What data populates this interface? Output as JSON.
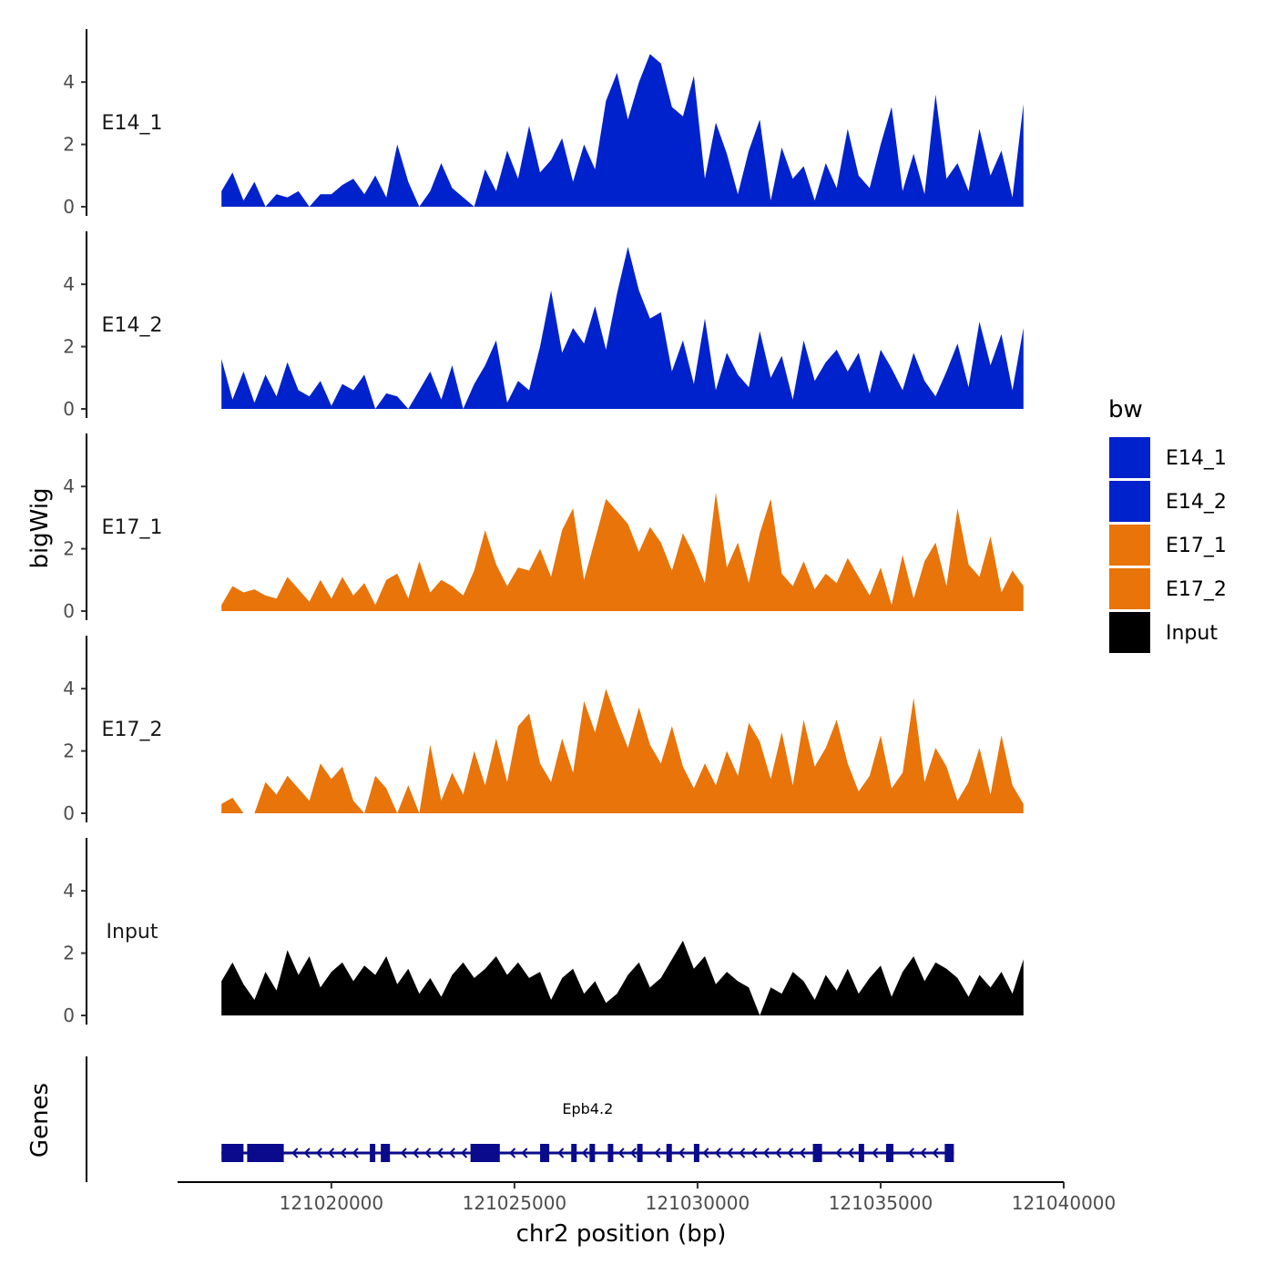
{
  "chart_data": {
    "type": "area",
    "title": "",
    "xlabel": "chr2 position (bp)",
    "ylabel": "bigWig",
    "genes_label": "Genes",
    "xlim": [
      121015800,
      121040000
    ],
    "xticks": [
      121020000,
      121025000,
      121030000,
      121035000,
      121040000
    ],
    "xtick_labels": [
      "121020000",
      "121025000",
      "121030000",
      "121035000",
      "121040000"
    ],
    "ylim": [
      0,
      5.7
    ],
    "yticks": [
      0,
      2,
      4
    ],
    "ytick_labels": [
      "0",
      "2",
      "4"
    ],
    "legend": {
      "title": "bw",
      "position": "right",
      "entries": [
        {
          "label": "E14_1",
          "color": "#0022CC"
        },
        {
          "label": "E14_2",
          "color": "#0022CC"
        },
        {
          "label": "E17_1",
          "color": "#E8740A"
        },
        {
          "label": "E17_2",
          "color": "#E8740A"
        },
        {
          "label": "Input",
          "color": "#000000"
        }
      ]
    },
    "series": [
      {
        "name": "E14_1",
        "color": "#0022CC",
        "x": [
          121017000,
          121017300,
          121017600,
          121017900,
          121018200,
          121018500,
          121018800,
          121019100,
          121019400,
          121019700,
          121020000,
          121020300,
          121020600,
          121020900,
          121021200,
          121021500,
          121021800,
          121022100,
          121022400,
          121022700,
          121023000,
          121023300,
          121023600,
          121023900,
          121024200,
          121024500,
          121024800,
          121025100,
          121025400,
          121025700,
          121026000,
          121026300,
          121026600,
          121026900,
          121027200,
          121027500,
          121027800,
          121028100,
          121028400,
          121028700,
          121029000,
          121029300,
          121029600,
          121029900,
          121030200,
          121030500,
          121030800,
          121031100,
          121031400,
          121031700,
          121032000,
          121032300,
          121032600,
          121032900,
          121033200,
          121033500,
          121033800,
          121034100,
          121034400,
          121034700,
          121035000,
          121035300,
          121035600,
          121035900,
          121036200,
          121036500,
          121036800,
          121037100,
          121037400,
          121037700,
          121038000,
          121038300,
          121038600,
          121038900
        ],
        "values": [
          0.5,
          1.1,
          0.2,
          0.8,
          0.0,
          0.4,
          0.3,
          0.5,
          0.0,
          0.4,
          0.4,
          0.7,
          0.9,
          0.4,
          1.0,
          0.3,
          2.0,
          0.8,
          0.0,
          0.5,
          1.4,
          0.6,
          0.3,
          0.0,
          1.2,
          0.5,
          1.8,
          0.9,
          2.6,
          1.1,
          1.5,
          2.2,
          0.8,
          2.0,
          1.2,
          3.4,
          4.3,
          2.8,
          4.0,
          4.9,
          4.6,
          3.2,
          2.9,
          4.2,
          0.9,
          2.7,
          1.7,
          0.4,
          1.8,
          2.8,
          0.2,
          1.9,
          0.9,
          1.3,
          0.2,
          1.4,
          0.6,
          2.5,
          1.0,
          0.6,
          2.0,
          3.2,
          0.5,
          1.7,
          0.4,
          3.6,
          0.9,
          1.4,
          0.5,
          2.5,
          1.0,
          1.8,
          0.3,
          3.3
        ]
      },
      {
        "name": "E14_2",
        "color": "#0022CC",
        "x": [
          121017000,
          121017300,
          121017600,
          121017900,
          121018200,
          121018500,
          121018800,
          121019100,
          121019400,
          121019700,
          121020000,
          121020300,
          121020600,
          121020900,
          121021200,
          121021500,
          121021800,
          121022100,
          121022400,
          121022700,
          121023000,
          121023300,
          121023600,
          121023900,
          121024200,
          121024500,
          121024800,
          121025100,
          121025400,
          121025700,
          121026000,
          121026300,
          121026600,
          121026900,
          121027200,
          121027500,
          121027800,
          121028100,
          121028400,
          121028700,
          121029000,
          121029300,
          121029600,
          121029900,
          121030200,
          121030500,
          121030800,
          121031100,
          121031400,
          121031700,
          121032000,
          121032300,
          121032600,
          121032900,
          121033200,
          121033500,
          121033800,
          121034100,
          121034400,
          121034700,
          121035000,
          121035300,
          121035600,
          121035900,
          121036200,
          121036500,
          121036800,
          121037100,
          121037400,
          121037700,
          121038000,
          121038300,
          121038600,
          121038900
        ],
        "values": [
          1.6,
          0.3,
          1.2,
          0.2,
          1.1,
          0.4,
          1.5,
          0.6,
          0.4,
          0.9,
          0.1,
          0.8,
          0.6,
          1.1,
          0.0,
          0.5,
          0.4,
          0.0,
          0.6,
          1.2,
          0.3,
          1.4,
          0.0,
          0.8,
          1.4,
          2.2,
          0.2,
          0.9,
          0.6,
          2.0,
          3.8,
          1.8,
          2.6,
          2.1,
          3.3,
          1.9,
          3.7,
          5.2,
          3.8,
          2.9,
          3.1,
          1.2,
          2.2,
          0.8,
          2.9,
          0.6,
          1.8,
          1.1,
          0.7,
          2.5,
          1.0,
          1.7,
          0.3,
          2.2,
          0.9,
          1.5,
          1.9,
          1.2,
          1.8,
          0.5,
          1.9,
          1.3,
          0.6,
          1.8,
          0.9,
          0.4,
          1.2,
          2.1,
          0.7,
          2.8,
          1.4,
          2.4,
          0.6,
          2.6
        ]
      },
      {
        "name": "E17_1",
        "color": "#E8740A",
        "x": [
          121017000,
          121017300,
          121017600,
          121017900,
          121018200,
          121018500,
          121018800,
          121019100,
          121019400,
          121019700,
          121020000,
          121020300,
          121020600,
          121020900,
          121021200,
          121021500,
          121021800,
          121022100,
          121022400,
          121022700,
          121023000,
          121023300,
          121023600,
          121023900,
          121024200,
          121024500,
          121024800,
          121025100,
          121025400,
          121025700,
          121026000,
          121026300,
          121026600,
          121026900,
          121027200,
          121027500,
          121027800,
          121028100,
          121028400,
          121028700,
          121029000,
          121029300,
          121029600,
          121029900,
          121030200,
          121030500,
          121030800,
          121031100,
          121031400,
          121031700,
          121032000,
          121032300,
          121032600,
          121032900,
          121033200,
          121033500,
          121033800,
          121034100,
          121034400,
          121034700,
          121035000,
          121035300,
          121035600,
          121035900,
          121036200,
          121036500,
          121036800,
          121037100,
          121037400,
          121037700,
          121038000,
          121038300,
          121038600,
          121038900
        ],
        "values": [
          0.2,
          0.8,
          0.6,
          0.7,
          0.5,
          0.4,
          1.1,
          0.7,
          0.3,
          1.0,
          0.4,
          1.1,
          0.5,
          0.9,
          0.2,
          1.0,
          1.2,
          0.4,
          1.6,
          0.6,
          1.0,
          0.8,
          0.5,
          1.3,
          2.6,
          1.5,
          0.8,
          1.4,
          1.3,
          2.0,
          1.1,
          2.6,
          3.3,
          1.0,
          2.3,
          3.6,
          3.2,
          2.8,
          1.9,
          2.7,
          2.2,
          1.3,
          2.5,
          1.8,
          0.9,
          3.8,
          1.4,
          2.2,
          0.9,
          2.5,
          3.6,
          1.2,
          0.8,
          1.6,
          0.7,
          1.2,
          0.9,
          1.7,
          1.1,
          0.5,
          1.4,
          0.2,
          1.8,
          0.4,
          1.6,
          2.2,
          0.8,
          3.3,
          1.5,
          1.1,
          2.4,
          0.6,
          1.3,
          0.8
        ]
      },
      {
        "name": "E17_2",
        "color": "#E8740A",
        "x": [
          121017000,
          121017300,
          121017600,
          121017900,
          121018200,
          121018500,
          121018800,
          121019100,
          121019400,
          121019700,
          121020000,
          121020300,
          121020600,
          121020900,
          121021200,
          121021500,
          121021800,
          121022100,
          121022400,
          121022700,
          121023000,
          121023300,
          121023600,
          121023900,
          121024200,
          121024500,
          121024800,
          121025100,
          121025400,
          121025700,
          121026000,
          121026300,
          121026600,
          121026900,
          121027200,
          121027500,
          121027800,
          121028100,
          121028400,
          121028700,
          121029000,
          121029300,
          121029600,
          121029900,
          121030200,
          121030500,
          121030800,
          121031100,
          121031400,
          121031700,
          121032000,
          121032300,
          121032600,
          121032900,
          121033200,
          121033500,
          121033800,
          121034100,
          121034400,
          121034700,
          121035000,
          121035300,
          121035600,
          121035900,
          121036200,
          121036500,
          121036800,
          121037100,
          121037400,
          121037700,
          121038000,
          121038300,
          121038600,
          121038900
        ],
        "values": [
          0.3,
          0.5,
          0.0,
          0.0,
          1.0,
          0.6,
          1.2,
          0.8,
          0.4,
          1.6,
          1.1,
          1.5,
          0.4,
          0.0,
          1.2,
          0.8,
          0.0,
          0.9,
          0.0,
          2.2,
          0.4,
          1.3,
          0.6,
          2.0,
          0.9,
          2.4,
          1.0,
          2.8,
          3.2,
          1.6,
          1.0,
          2.4,
          1.3,
          3.6,
          2.6,
          4.0,
          3.0,
          2.1,
          3.4,
          2.2,
          1.6,
          2.8,
          1.5,
          0.8,
          1.6,
          0.9,
          2.0,
          1.2,
          2.9,
          2.3,
          1.1,
          2.6,
          0.9,
          3.0,
          1.5,
          2.1,
          3.0,
          1.6,
          0.7,
          1.2,
          2.5,
          0.8,
          1.3,
          3.7,
          1.0,
          2.1,
          1.5,
          0.4,
          1.0,
          2.1,
          0.6,
          2.5,
          0.9,
          0.3
        ]
      },
      {
        "name": "Input",
        "color": "#000000",
        "x": [
          121017000,
          121017300,
          121017600,
          121017900,
          121018200,
          121018500,
          121018800,
          121019100,
          121019400,
          121019700,
          121020000,
          121020300,
          121020600,
          121020900,
          121021200,
          121021500,
          121021800,
          121022100,
          121022400,
          121022700,
          121023000,
          121023300,
          121023600,
          121023900,
          121024200,
          121024500,
          121024800,
          121025100,
          121025400,
          121025700,
          121026000,
          121026300,
          121026600,
          121026900,
          121027200,
          121027500,
          121027800,
          121028100,
          121028400,
          121028700,
          121029000,
          121029300,
          121029600,
          121029900,
          121030200,
          121030500,
          121030800,
          121031100,
          121031400,
          121031700,
          121032000,
          121032300,
          121032600,
          121032900,
          121033200,
          121033500,
          121033800,
          121034100,
          121034400,
          121034700,
          121035000,
          121035300,
          121035600,
          121035900,
          121036200,
          121036500,
          121036800,
          121037100,
          121037400,
          121037700,
          121038000,
          121038300,
          121038600,
          121038900
        ],
        "values": [
          1.1,
          1.7,
          1.0,
          0.5,
          1.4,
          0.8,
          2.1,
          1.3,
          1.9,
          0.9,
          1.4,
          1.7,
          1.1,
          1.6,
          1.3,
          1.9,
          1.0,
          1.5,
          0.7,
          1.2,
          0.6,
          1.3,
          1.7,
          1.2,
          1.5,
          1.9,
          1.3,
          1.7,
          1.2,
          1.4,
          0.5,
          1.2,
          1.5,
          0.7,
          1.1,
          0.4,
          0.7,
          1.3,
          1.7,
          0.9,
          1.2,
          1.8,
          2.4,
          1.5,
          1.9,
          1.0,
          1.4,
          1.1,
          0.9,
          0.0,
          0.9,
          0.7,
          1.4,
          1.1,
          0.5,
          1.3,
          0.8,
          1.5,
          0.7,
          1.2,
          1.6,
          0.6,
          1.4,
          1.9,
          1.1,
          1.7,
          1.5,
          1.2,
          0.6,
          1.3,
          0.9,
          1.4,
          0.7,
          1.8
        ]
      }
    ],
    "gene_track": {
      "gene_name": "Epb4.2",
      "strand": "-",
      "color": "#0A0A8C",
      "start": 121017000,
      "end": 121037000,
      "exons": [
        [
          121017000,
          121017600
        ],
        [
          121017700,
          121018700
        ],
        [
          121021050,
          121021150
        ],
        [
          121021350,
          121021600
        ],
        [
          121023800,
          121024600
        ],
        [
          121025700,
          121025950
        ],
        [
          121026550,
          121026650
        ],
        [
          121027050,
          121027200
        ],
        [
          121027550,
          121027650
        ],
        [
          121028350,
          121028450
        ],
        [
          121029150,
          121029250
        ],
        [
          121029900,
          121030000
        ],
        [
          121033150,
          121033400
        ],
        [
          121034400,
          121034550
        ],
        [
          121035150,
          121035350
        ],
        [
          121036750,
          121037000
        ]
      ]
    }
  }
}
